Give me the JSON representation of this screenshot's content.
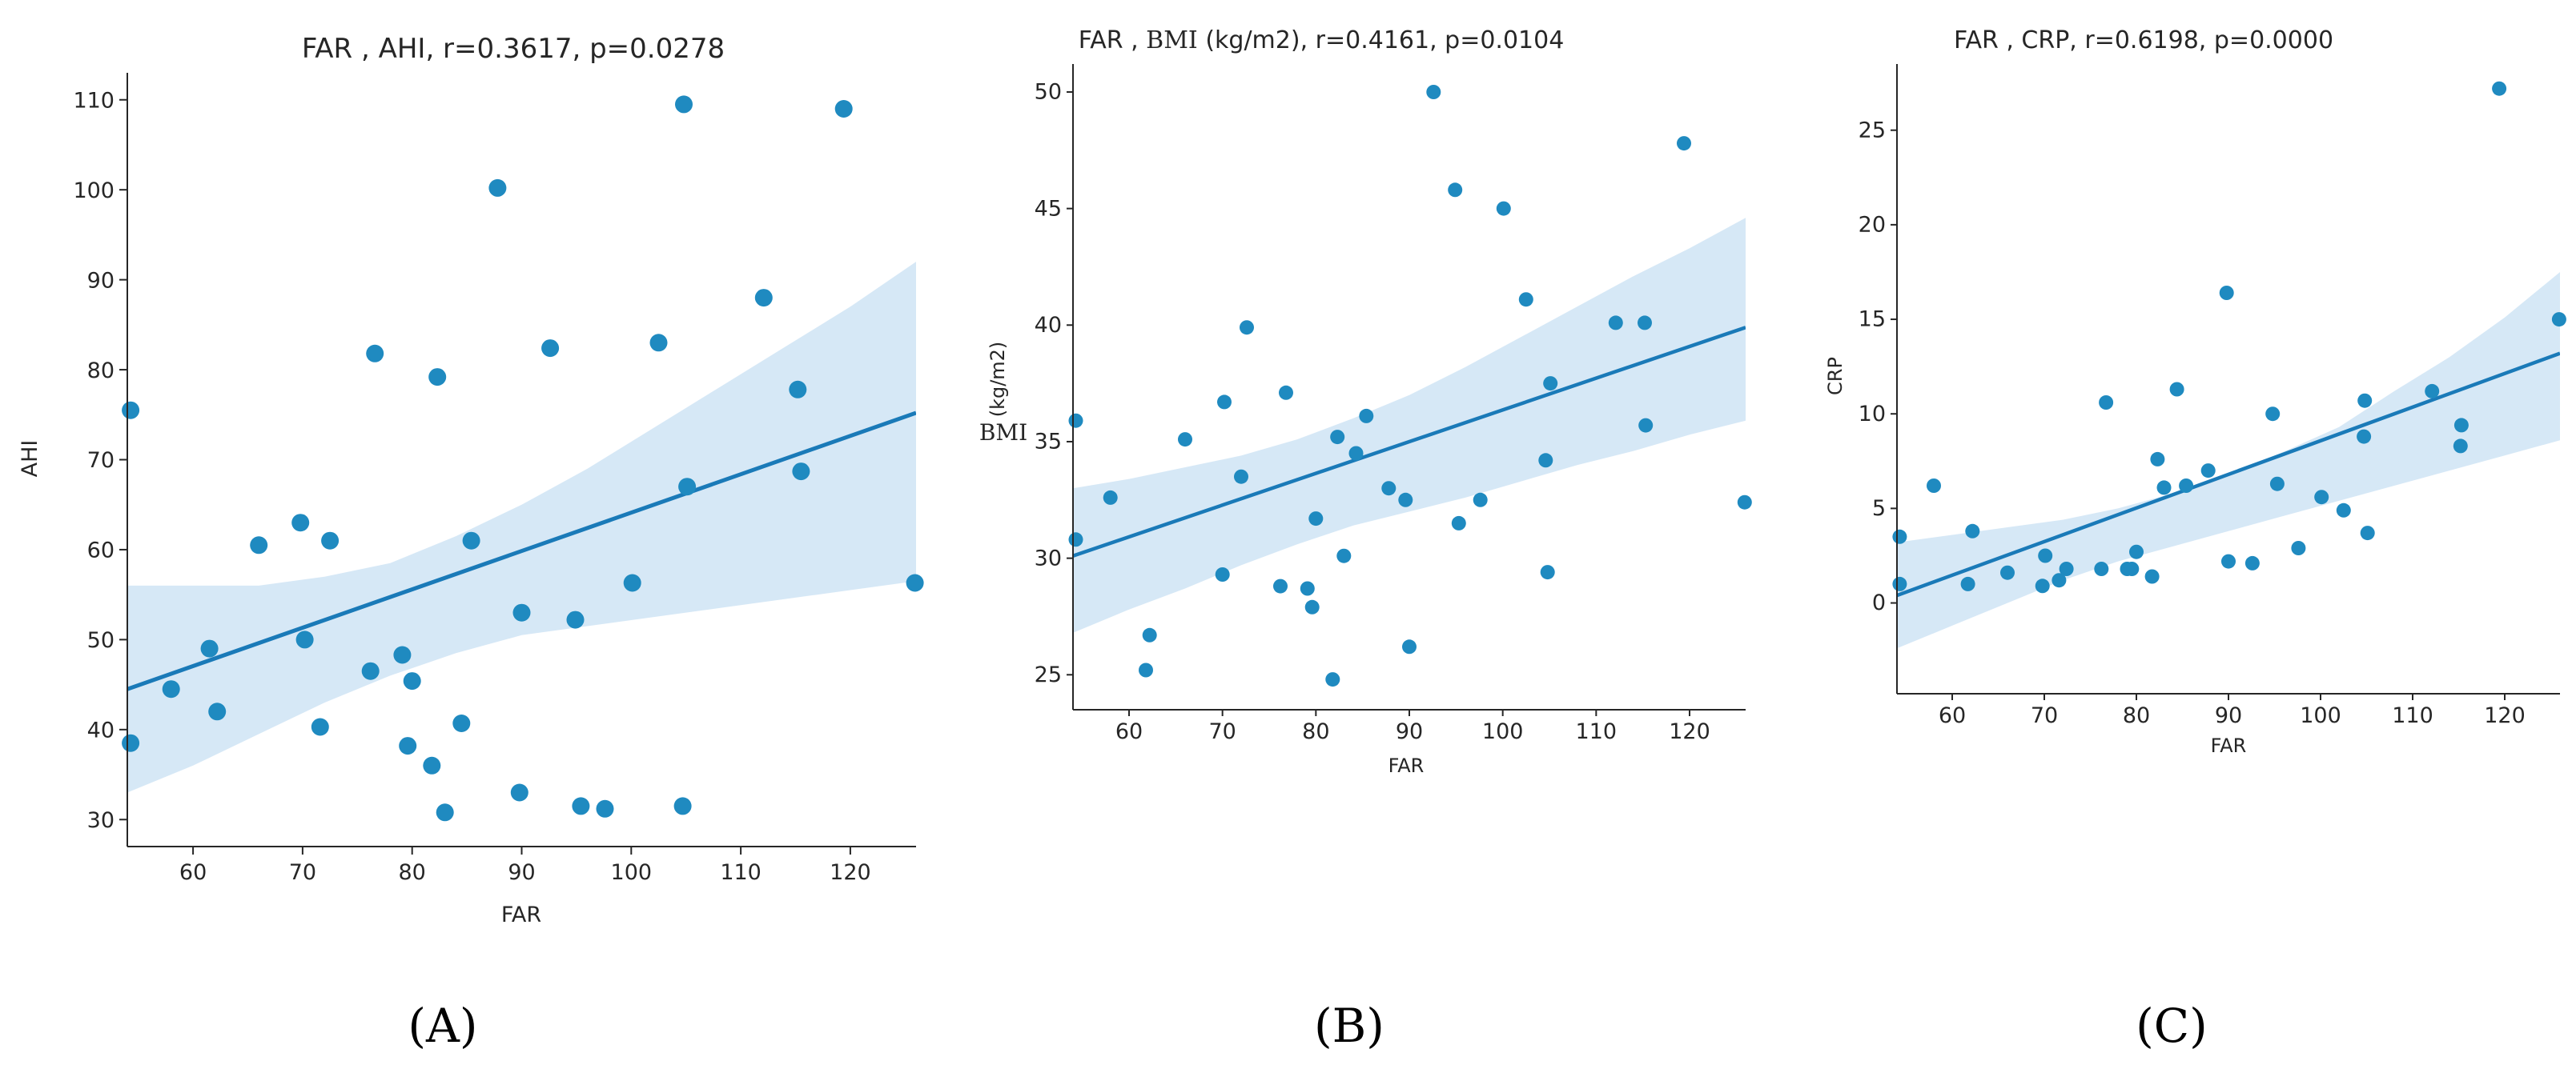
{
  "figure": {
    "panel_labels": [
      "(A)",
      "(B)",
      "(C)"
    ]
  },
  "colors": {
    "point": "#1f8ac0",
    "line": "#1a7ab8",
    "band": "#cfe4f4",
    "axis": "#262626"
  },
  "chart_data": [
    {
      "type": "scatter",
      "title": "FAR , AHI, r=0.3617, p=0.0278",
      "xlabel": "FAR",
      "ylabel": "AHI",
      "xlim": [
        54,
        126
      ],
      "ylim": [
        27,
        113
      ],
      "xticks": [
        60,
        70,
        80,
        90,
        100,
        110,
        120
      ],
      "yticks": [
        30,
        40,
        50,
        60,
        70,
        80,
        90,
        100,
        110
      ],
      "points": [
        [
          54.3,
          75.5
        ],
        [
          54.3,
          38.5
        ],
        [
          58.0,
          44.5
        ],
        [
          61.5,
          49.0
        ],
        [
          62.2,
          42.0
        ],
        [
          66.0,
          60.5
        ],
        [
          69.8,
          63.0
        ],
        [
          70.2,
          50.0
        ],
        [
          71.6,
          40.3
        ],
        [
          72.5,
          61.0
        ],
        [
          76.2,
          46.5
        ],
        [
          76.6,
          81.8
        ],
        [
          79.1,
          48.3
        ],
        [
          79.6,
          38.2
        ],
        [
          80.0,
          45.4
        ],
        [
          81.8,
          36.0
        ],
        [
          82.3,
          79.2
        ],
        [
          83.0,
          30.8
        ],
        [
          84.5,
          40.7
        ],
        [
          85.4,
          61.0
        ],
        [
          87.8,
          100.2
        ],
        [
          89.8,
          33.0
        ],
        [
          90.0,
          53.0
        ],
        [
          92.6,
          82.4
        ],
        [
          94.9,
          52.2
        ],
        [
          95.4,
          31.5
        ],
        [
          97.6,
          31.2
        ],
        [
          100.1,
          56.3
        ],
        [
          102.5,
          83.0
        ],
        [
          104.7,
          31.5
        ],
        [
          104.8,
          109.5
        ],
        [
          105.1,
          67.0
        ],
        [
          112.1,
          88.0
        ],
        [
          115.2,
          77.8
        ],
        [
          115.5,
          68.7
        ],
        [
          119.4,
          109.0
        ],
        [
          125.9,
          56.3
        ]
      ],
      "regression": {
        "x": [
          54,
          126
        ],
        "y": [
          44.5,
          75.2
        ]
      },
      "confidence_band": {
        "x": [
          54,
          60,
          66,
          72,
          78,
          84,
          90,
          96,
          102,
          108,
          114,
          120,
          126
        ],
        "upper": [
          56.0,
          56.0,
          56.0,
          57.0,
          58.5,
          61.5,
          65.0,
          69.0,
          73.5,
          78.0,
          82.5,
          87.0,
          92.0
        ],
        "lower": [
          33.0,
          36.0,
          39.5,
          43.0,
          46.0,
          48.5,
          50.5,
          51.5,
          52.5,
          53.5,
          54.5,
          55.5,
          56.5
        ]
      }
    },
    {
      "type": "scatter",
      "title": "FAR , BMI (kg/m2), r=0.4161, p=0.0104",
      "title_parts": [
        "FAR , ",
        "BMI",
        " (kg/m2), r=0.4161, p=0.0104"
      ],
      "xlabel": "FAR",
      "ylabel": "BMI (kg/m2)",
      "ylabel_parts": [
        "BMI",
        "(kg/m2)"
      ],
      "xlim": [
        54,
        126
      ],
      "ylim": [
        23.5,
        51.2
      ],
      "xticks": [
        60,
        70,
        80,
        90,
        100,
        110,
        120
      ],
      "yticks": [
        25,
        30,
        35,
        40,
        45,
        50
      ],
      "points": [
        [
          54.3,
          35.9
        ],
        [
          54.3,
          30.8
        ],
        [
          58.0,
          32.6
        ],
        [
          61.8,
          25.2
        ],
        [
          62.2,
          26.7
        ],
        [
          66.0,
          35.1
        ],
        [
          70.0,
          29.3
        ],
        [
          70.2,
          36.7
        ],
        [
          72.0,
          33.5
        ],
        [
          72.6,
          39.9
        ],
        [
          76.2,
          28.8
        ],
        [
          76.8,
          37.1
        ],
        [
          79.1,
          28.7
        ],
        [
          79.6,
          27.9
        ],
        [
          80.0,
          31.7
        ],
        [
          81.8,
          24.8
        ],
        [
          82.3,
          35.2
        ],
        [
          83.0,
          30.1
        ],
        [
          84.3,
          34.5
        ],
        [
          85.4,
          36.1
        ],
        [
          87.8,
          33.0
        ],
        [
          89.6,
          32.5
        ],
        [
          90.0,
          26.2
        ],
        [
          92.6,
          50.0
        ],
        [
          94.9,
          45.8
        ],
        [
          95.3,
          31.5
        ],
        [
          97.6,
          32.5
        ],
        [
          100.1,
          45.0
        ],
        [
          102.5,
          41.1
        ],
        [
          104.6,
          34.2
        ],
        [
          104.8,
          29.4
        ],
        [
          105.1,
          37.5
        ],
        [
          112.1,
          40.1
        ],
        [
          115.2,
          40.1
        ],
        [
          115.3,
          35.7
        ],
        [
          119.4,
          47.8
        ],
        [
          125.9,
          32.4
        ]
      ],
      "regression": {
        "x": [
          54,
          126
        ],
        "y": [
          30.1,
          39.9
        ]
      },
      "confidence_band": {
        "x": [
          54,
          60,
          66,
          72,
          78,
          84,
          90,
          96,
          102,
          108,
          114,
          120,
          126
        ],
        "upper": [
          33.0,
          33.4,
          33.9,
          34.4,
          35.1,
          36.0,
          37.0,
          38.2,
          39.5,
          40.8,
          42.1,
          43.3,
          44.6
        ],
        "lower": [
          26.8,
          27.8,
          28.7,
          29.7,
          30.6,
          31.4,
          32.0,
          32.6,
          33.3,
          34.0,
          34.6,
          35.3,
          35.9
        ]
      }
    },
    {
      "type": "scatter",
      "title": "FAR , CRP, r=0.6198, p=0.0000",
      "xlabel": "FAR",
      "ylabel": "CRP",
      "xlim": [
        54,
        126
      ],
      "ylim": [
        -4.8,
        28.5
      ],
      "xticks": [
        60,
        70,
        80,
        90,
        100,
        110,
        120
      ],
      "yticks": [
        0,
        5,
        10,
        15,
        20,
        25
      ],
      "points": [
        [
          54.3,
          3.5
        ],
        [
          54.3,
          1.0
        ],
        [
          58.0,
          6.2
        ],
        [
          61.7,
          1.0
        ],
        [
          62.2,
          3.8
        ],
        [
          66.0,
          1.6
        ],
        [
          69.8,
          0.9
        ],
        [
          70.1,
          2.5
        ],
        [
          71.6,
          1.2
        ],
        [
          72.4,
          1.8
        ],
        [
          76.2,
          1.8
        ],
        [
          76.7,
          10.6
        ],
        [
          79.0,
          1.8
        ],
        [
          79.5,
          1.8
        ],
        [
          80.0,
          2.7
        ],
        [
          81.7,
          1.4
        ],
        [
          82.3,
          7.6
        ],
        [
          83.0,
          6.1
        ],
        [
          84.4,
          11.3
        ],
        [
          85.4,
          6.2
        ],
        [
          87.8,
          7.0
        ],
        [
          89.8,
          16.4
        ],
        [
          90.0,
          2.2
        ],
        [
          92.6,
          2.1
        ],
        [
          94.8,
          10.0
        ],
        [
          95.3,
          6.3
        ],
        [
          97.6,
          2.9
        ],
        [
          100.1,
          5.6
        ],
        [
          102.5,
          4.9
        ],
        [
          104.7,
          8.8
        ],
        [
          104.8,
          10.7
        ],
        [
          105.1,
          3.7
        ],
        [
          112.1,
          11.2
        ],
        [
          115.2,
          8.3
        ],
        [
          115.3,
          9.4
        ],
        [
          119.4,
          27.2
        ],
        [
          125.9,
          15.0
        ]
      ],
      "regression": {
        "x": [
          54,
          126
        ],
        "y": [
          0.4,
          13.2
        ]
      },
      "confidence_band": {
        "x": [
          54,
          60,
          66,
          72,
          78,
          84,
          90,
          96,
          102,
          108,
          114,
          120,
          126
        ],
        "upper": [
          3.2,
          3.6,
          4.0,
          4.4,
          5.0,
          5.8,
          6.8,
          8.0,
          9.3,
          11.2,
          13.0,
          15.1,
          17.5
        ],
        "lower": [
          -2.4,
          -1.2,
          0.0,
          1.2,
          2.2,
          3.0,
          3.8,
          4.6,
          5.4,
          6.2,
          7.0,
          7.8,
          8.6
        ]
      }
    }
  ]
}
